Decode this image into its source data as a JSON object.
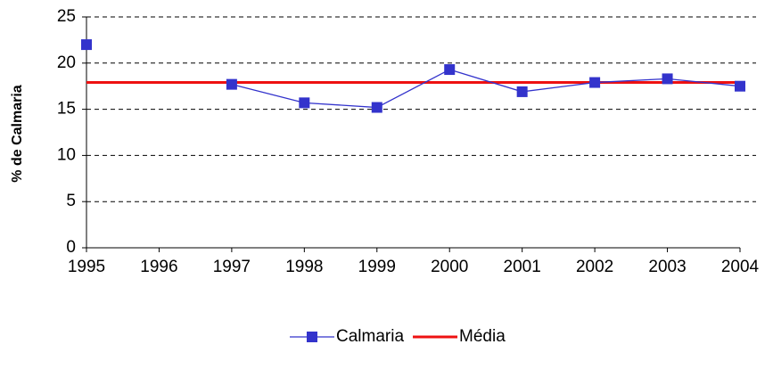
{
  "chart_data": {
    "type": "line",
    "y_label": "% de Calmaria",
    "x": [
      1995,
      1996,
      1997,
      1998,
      1999,
      2000,
      2001,
      2002,
      2003,
      2004
    ],
    "series": [
      {
        "name": "Calmaria",
        "color": "#3333cc",
        "values": [
          22,
          null,
          17.7,
          15.7,
          15.2,
          19.3,
          16.9,
          17.9,
          18.3,
          17.5
        ]
      },
      {
        "name": "Média",
        "color": "#ee1111",
        "values": [
          17.9,
          17.9,
          17.9,
          17.9,
          17.9,
          17.9,
          17.9,
          17.9,
          17.9,
          17.9
        ]
      }
    ],
    "xlim": [
      1995,
      2004
    ],
    "xticks": [
      1995,
      1996,
      1997,
      1998,
      1999,
      2000,
      2001,
      2002,
      2003,
      2004
    ],
    "ylim": [
      0,
      25
    ],
    "yticks": [
      0,
      5,
      10,
      15,
      20,
      25
    ],
    "grid": true,
    "legend": "bottom"
  }
}
